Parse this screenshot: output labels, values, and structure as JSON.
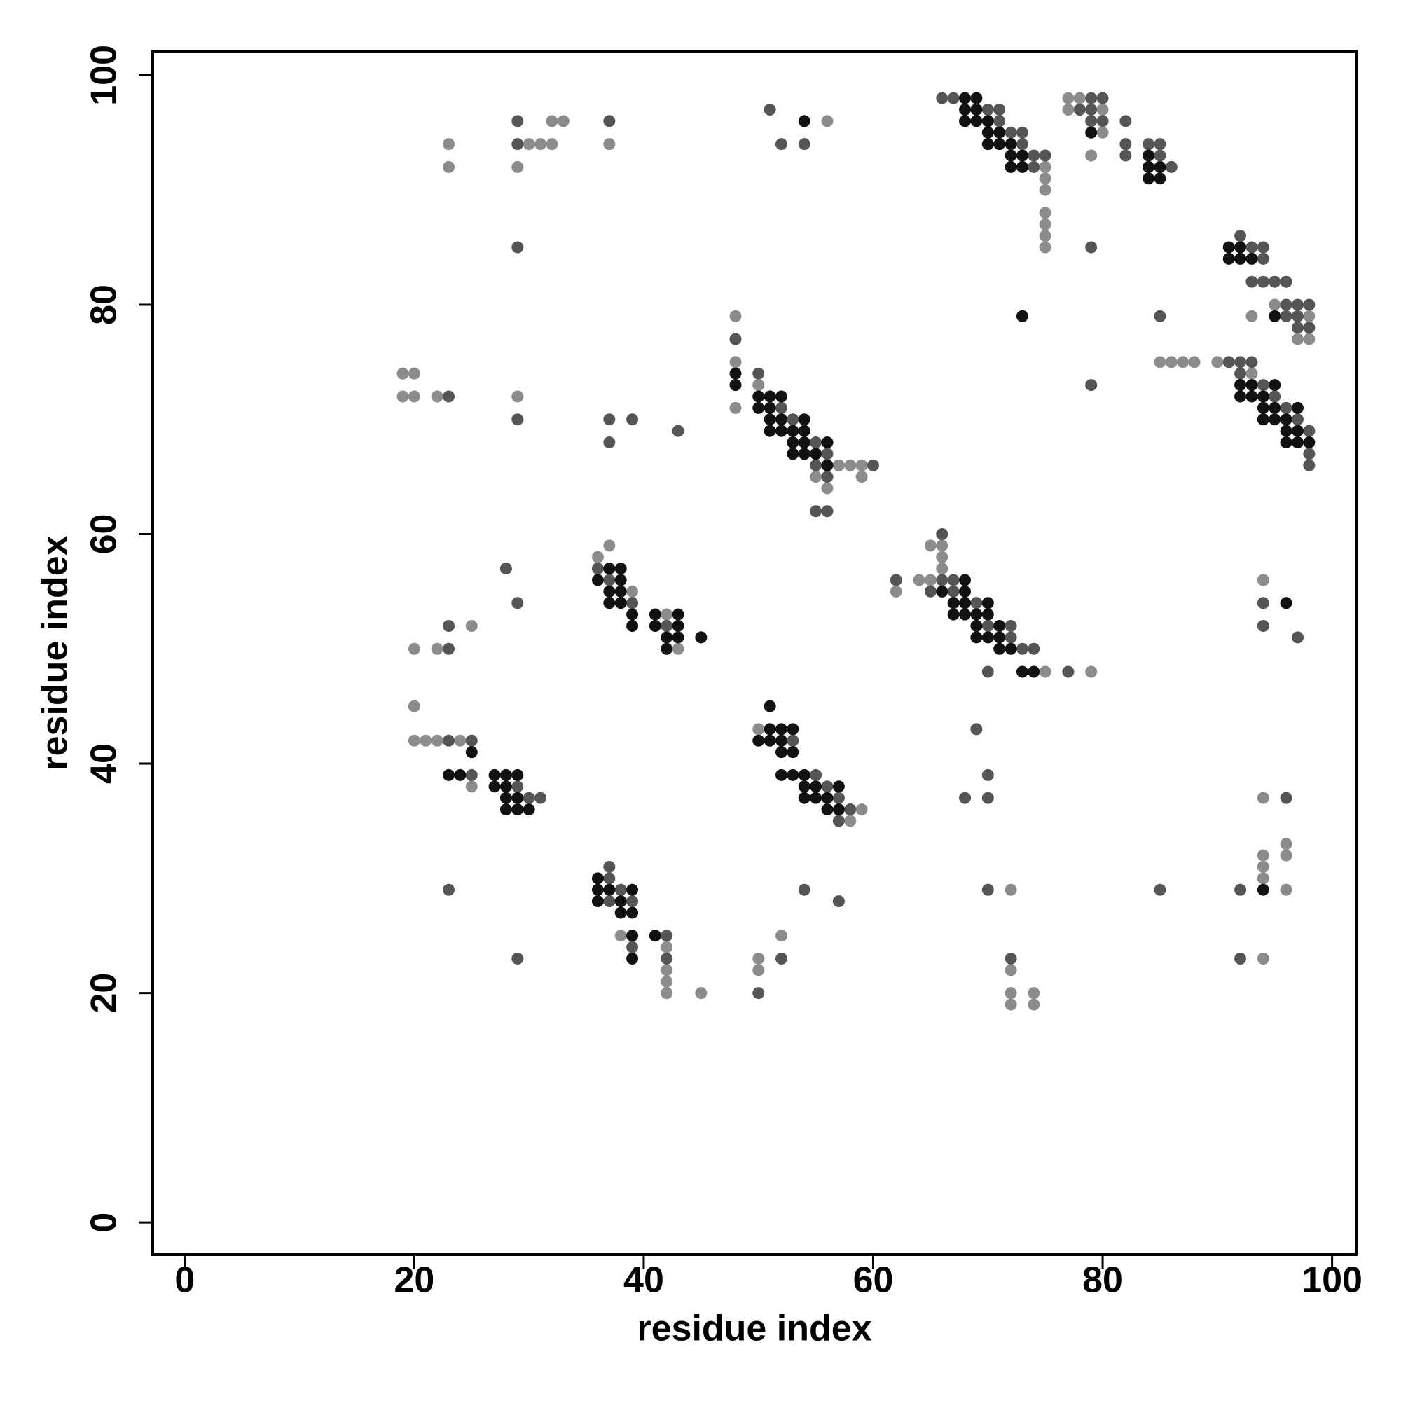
{
  "chart_data": {
    "type": "scatter",
    "xlabel": "residue index",
    "ylabel": "residue index",
    "xlim": [
      -2.8,
      102.1
    ],
    "ylim": [
      -2.8,
      102.1
    ],
    "xticks": [
      0,
      20,
      40,
      60,
      80,
      100
    ],
    "yticks": [
      0,
      20,
      40,
      60,
      80,
      100
    ],
    "grid": false,
    "series": [
      {
        "color": "#8c8c8c",
        "x": [
          23,
          23,
          30,
          31,
          32,
          32,
          33,
          29,
          37,
          56,
          75,
          75,
          75,
          75,
          75,
          75,
          75,
          77,
          78,
          77,
          80,
          80,
          79,
          95,
          93,
          98,
          97,
          98,
          85,
          86,
          87,
          88,
          90,
          93,
          19,
          20,
          19,
          20,
          22,
          29,
          48,
          48,
          48,
          50,
          57,
          58,
          59,
          55,
          59,
          56,
          36,
          37,
          39,
          42,
          43,
          25,
          20,
          22,
          62,
          64,
          65,
          66,
          66,
          66,
          65,
          75,
          79,
          94,
          20,
          20,
          21,
          22,
          24,
          25,
          50,
          59,
          58,
          94,
          96,
          96,
          94,
          94,
          94,
          96,
          94,
          38,
          42,
          42,
          42,
          42,
          45,
          50,
          52,
          50,
          72,
          72,
          72,
          72,
          74,
          74
        ],
        "y": [
          94,
          92,
          94,
          94,
          94,
          96,
          96,
          92,
          94,
          96,
          92,
          91,
          90,
          88,
          87,
          86,
          85,
          98,
          98,
          97,
          97,
          95,
          93,
          80,
          79,
          79,
          77,
          77,
          75,
          75,
          75,
          75,
          75,
          74,
          74,
          74,
          72,
          72,
          72,
          72,
          79,
          75,
          71,
          73,
          66,
          66,
          66,
          65,
          65,
          64,
          58,
          59,
          55,
          53,
          50,
          52,
          50,
          50,
          55,
          56,
          59,
          59,
          58,
          57,
          56,
          48,
          48,
          56,
          45,
          42,
          42,
          42,
          42,
          38,
          43,
          36,
          35,
          37,
          33,
          32,
          32,
          31,
          30,
          29,
          23,
          25,
          24,
          22,
          21,
          20,
          20,
          23,
          25,
          22,
          29,
          22,
          20,
          19,
          20,
          19
        ]
      },
      {
        "color": "#555555",
        "x": [
          29,
          29,
          37,
          29,
          51,
          52,
          54,
          66,
          67,
          70,
          71,
          71,
          72,
          73,
          73,
          74,
          75,
          74,
          79,
          80,
          78,
          79,
          79,
          80,
          79,
          82,
          82,
          82,
          84,
          85,
          85,
          86,
          92,
          93,
          94,
          94,
          93,
          94,
          95,
          96,
          96,
          97,
          98,
          96,
          97,
          97,
          98,
          85,
          91,
          92,
          93,
          92,
          94,
          95,
          96,
          97,
          98,
          98,
          98,
          79,
          23,
          29,
          37,
          39,
          37,
          43,
          48,
          50,
          52,
          53,
          55,
          56,
          55,
          60,
          56,
          55,
          56,
          28,
          29,
          36,
          37,
          39,
          42,
          23,
          23,
          62,
          66,
          66,
          67,
          65,
          67,
          69,
          70,
          72,
          72,
          73,
          74,
          70,
          77,
          94,
          94,
          97,
          23,
          25,
          25,
          29,
          30,
          31,
          53,
          55,
          56,
          57,
          58,
          57,
          69,
          70,
          68,
          70,
          96,
          92,
          92,
          23,
          29,
          37,
          37,
          38,
          37,
          39,
          39,
          42,
          42,
          54,
          57,
          52,
          50,
          70,
          72,
          85
        ],
        "y": [
          96,
          94,
          96,
          85,
          97,
          94,
          94,
          98,
          98,
          97,
          97,
          96,
          95,
          95,
          94,
          93,
          93,
          92,
          98,
          98,
          97,
          97,
          96,
          96,
          85,
          96,
          94,
          93,
          94,
          94,
          93,
          92,
          86,
          85,
          85,
          84,
          82,
          82,
          82,
          82,
          80,
          80,
          80,
          79,
          79,
          78,
          78,
          79,
          75,
          75,
          75,
          74,
          73,
          72,
          71,
          70,
          69,
          67,
          66,
          73,
          72,
          70,
          70,
          70,
          68,
          69,
          77,
          74,
          71,
          70,
          68,
          67,
          66,
          66,
          65,
          62,
          62,
          57,
          54,
          57,
          56,
          54,
          52,
          52,
          50,
          56,
          60,
          56,
          56,
          55,
          55,
          54,
          52,
          52,
          51,
          50,
          50,
          48,
          48,
          54,
          52,
          51,
          42,
          42,
          39,
          38,
          37,
          37,
          42,
          39,
          38,
          37,
          36,
          35,
          43,
          39,
          37,
          37,
          37,
          29,
          23,
          29,
          23,
          31,
          30,
          29,
          28,
          28,
          24,
          25,
          23,
          29,
          28,
          23,
          20,
          29,
          23,
          29
        ]
      },
      {
        "color": "#111111",
        "x": [
          54,
          68,
          69,
          68,
          69,
          68,
          69,
          70,
          70,
          71,
          70,
          71,
          72,
          72,
          73,
          72,
          73,
          79,
          84,
          84,
          85,
          84,
          85,
          91,
          92,
          91,
          92,
          93,
          95,
          73,
          92,
          93,
          95,
          92,
          93,
          94,
          94,
          95,
          97,
          94,
          95,
          96,
          96,
          97,
          96,
          97,
          98,
          48,
          48,
          50,
          51,
          52,
          50,
          51,
          51,
          52,
          54,
          51,
          52,
          53,
          54,
          53,
          54,
          56,
          53,
          54,
          55,
          56,
          37,
          38,
          36,
          38,
          37,
          38,
          37,
          38,
          39,
          39,
          41,
          43,
          41,
          43,
          42,
          43,
          42,
          45,
          68,
          66,
          68,
          67,
          68,
          70,
          67,
          68,
          69,
          70,
          69,
          71,
          69,
          70,
          71,
          71,
          72,
          73,
          74,
          96,
          25,
          23,
          24,
          27,
          28,
          29,
          27,
          28,
          28,
          29,
          28,
          29,
          30,
          51,
          51,
          52,
          53,
          50,
          51,
          52,
          52,
          53,
          52,
          53,
          54,
          54,
          55,
          57,
          54,
          55,
          56,
          56,
          57,
          94,
          36,
          36,
          37,
          39,
          36,
          38,
          38,
          39,
          39,
          39,
          41
        ],
        "y": [
          96,
          98,
          98,
          97,
          97,
          96,
          96,
          96,
          95,
          95,
          94,
          94,
          94,
          93,
          93,
          92,
          92,
          95,
          93,
          92,
          92,
          91,
          91,
          85,
          85,
          84,
          84,
          84,
          79,
          79,
          73,
          73,
          73,
          72,
          72,
          72,
          71,
          71,
          71,
          70,
          70,
          70,
          69,
          69,
          68,
          68,
          68,
          74,
          73,
          72,
          72,
          72,
          71,
          71,
          70,
          70,
          70,
          69,
          69,
          69,
          69,
          68,
          68,
          68,
          67,
          67,
          67,
          66,
          57,
          57,
          56,
          56,
          55,
          55,
          54,
          54,
          53,
          52,
          53,
          53,
          52,
          52,
          51,
          51,
          50,
          51,
          56,
          55,
          55,
          54,
          54,
          54,
          53,
          53,
          53,
          53,
          52,
          52,
          51,
          51,
          51,
          50,
          50,
          48,
          48,
          54,
          41,
          39,
          39,
          39,
          39,
          39,
          38,
          38,
          37,
          37,
          36,
          36,
          36,
          45,
          43,
          43,
          43,
          42,
          42,
          42,
          41,
          41,
          39,
          39,
          39,
          38,
          38,
          38,
          37,
          37,
          37,
          36,
          36,
          29,
          30,
          29,
          29,
          29,
          28,
          28,
          27,
          27,
          25,
          23,
          25
        ]
      }
    ]
  }
}
